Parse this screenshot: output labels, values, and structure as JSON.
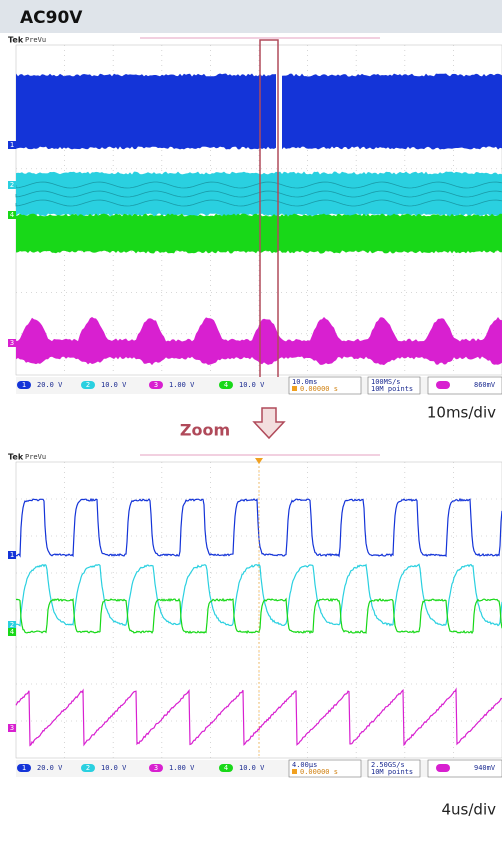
{
  "header": {
    "title": "AC90V"
  },
  "zoom_label": "Zoom",
  "scopes": [
    {
      "brand": "Tek",
      "mode": "PreVu",
      "channels": [
        {
          "number": "1",
          "scale": "20.0 V"
        },
        {
          "number": "2",
          "scale": "10.0 V"
        },
        {
          "number": "3",
          "scale": "1.00 V"
        },
        {
          "number": "4",
          "scale": "10.0 V"
        }
      ],
      "timebase": "10.0ms",
      "trigger_position": "0.00000 s",
      "sample_rate": "100MS/s",
      "record_length": "10M points",
      "trigger_level": "860mV",
      "caption": "10ms/div"
    },
    {
      "brand": "Tek",
      "mode": "PreVu",
      "channels": [
        {
          "number": "1",
          "scale": "20.0 V"
        },
        {
          "number": "2",
          "scale": "10.0 V"
        },
        {
          "number": "3",
          "scale": "1.00 V"
        },
        {
          "number": "4",
          "scale": "10.0 V"
        }
      ],
      "timebase": "4.00µs",
      "trigger_position": "0.00000 s",
      "sample_rate": "2.50GS/s",
      "record_length": "10M points",
      "trigger_level": "940mV",
      "caption": "4us/div"
    }
  ]
}
